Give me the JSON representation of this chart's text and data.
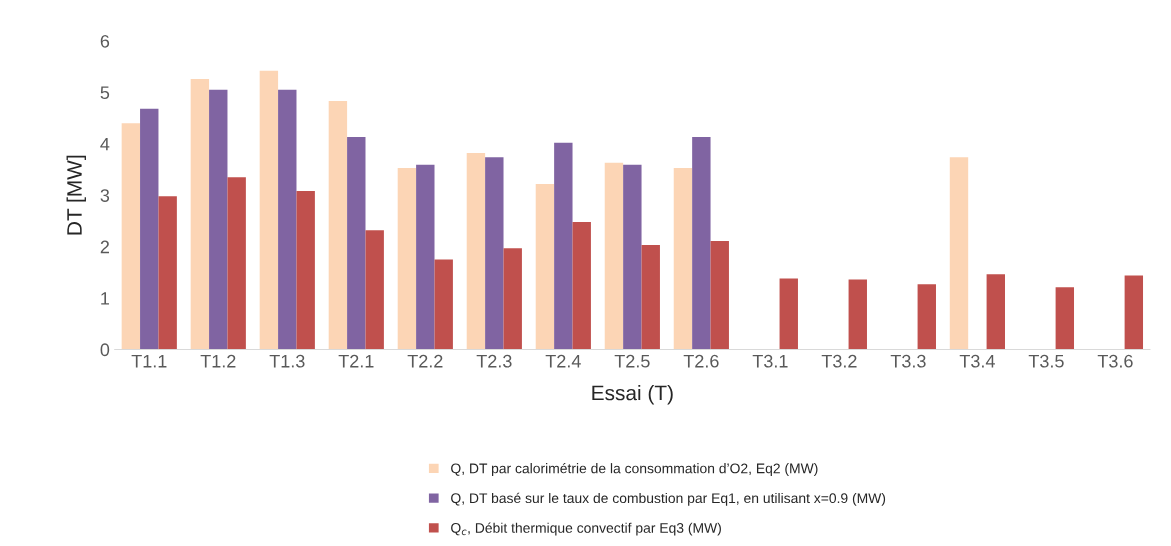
{
  "chart_data": {
    "type": "bar",
    "xlabel": "Essai (T)",
    "ylabel": "DT [MW]",
    "categories": [
      "T1.1",
      "T1.2",
      "T1.3",
      "T2.1",
      "T2.2",
      "T2.3",
      "T2.4",
      "T2.5",
      "T2.6",
      "T3.1",
      "T3.2",
      "T3.3",
      "T3.4",
      "T3.5",
      "T3.6"
    ],
    "series": [
      {
        "name": "Q, DT par calorimétrie de la consommation d’O2, Eq2 (MW)",
        "color": "#fcd5b5",
        "values": [
          4.4,
          5.26,
          5.42,
          4.83,
          3.53,
          3.82,
          3.22,
          3.63,
          3.53,
          null,
          null,
          null,
          3.74,
          null,
          null
        ]
      },
      {
        "name": "Q, DT basé sur le taux de combustion par Eq1, en utilisant x=0.9 (MW)",
        "color": "#8064a2",
        "values": [
          4.68,
          5.05,
          5.05,
          4.13,
          3.59,
          3.74,
          4.02,
          3.59,
          4.13,
          null,
          null,
          null,
          null,
          null,
          null
        ]
      },
      {
        "name": "Q$_{c}$, Débit thermique convectif par Eq3 (MW)",
        "color": "#c0504d",
        "values": [
          2.98,
          3.35,
          3.08,
          2.32,
          1.75,
          1.97,
          2.48,
          2.03,
          2.11,
          1.38,
          1.36,
          1.27,
          1.46,
          1.21,
          1.44
        ]
      }
    ],
    "ylim": [
      0,
      6
    ],
    "yticks": [
      0,
      1,
      2,
      3,
      4,
      5,
      6
    ],
    "grid": false,
    "legend": "bottom"
  }
}
